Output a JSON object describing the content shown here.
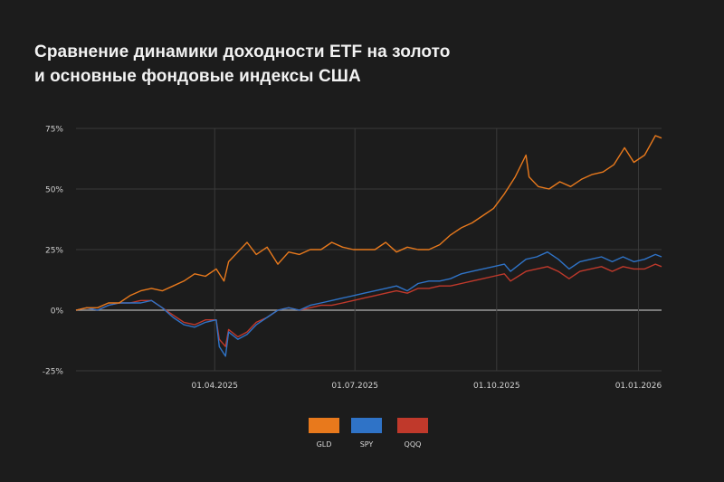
{
  "title": {
    "line1": "Сравнение динамики доходности ETF на золото",
    "line2": "и основные фондовые индексы США"
  },
  "chart_data": {
    "type": "line",
    "x_range": [
      "2025-01-01",
      "2026-01-16"
    ],
    "ylim": [
      -25,
      75
    ],
    "y_ticks": [
      {
        "value": 75,
        "label": "75%"
      },
      {
        "value": 50,
        "label": "50%"
      },
      {
        "value": 25,
        "label": "25%"
      },
      {
        "value": 0,
        "label": "0%"
      },
      {
        "value": -25,
        "label": "-25%"
      }
    ],
    "x_ticks": [
      {
        "date": "2025-04-01",
        "label": "01.04.2025"
      },
      {
        "date": "2025-07-01",
        "label": "01.07.2025"
      },
      {
        "date": "2025-10-01",
        "label": "01.10.2025"
      },
      {
        "date": "2026-01-01",
        "label": "01.01.2026"
      }
    ],
    "grid": true,
    "zero_line": true,
    "legend_position": "bottom",
    "series": [
      {
        "name": "GLD",
        "color": "#e8791c",
        "points": [
          [
            "2025-01-01",
            0
          ],
          [
            "2025-01-08",
            1
          ],
          [
            "2025-01-15",
            1
          ],
          [
            "2025-01-22",
            3
          ],
          [
            "2025-01-29",
            3
          ],
          [
            "2025-02-05",
            6
          ],
          [
            "2025-02-12",
            8
          ],
          [
            "2025-02-19",
            9
          ],
          [
            "2025-02-26",
            8
          ],
          [
            "2025-03-05",
            10
          ],
          [
            "2025-03-12",
            12
          ],
          [
            "2025-03-19",
            15
          ],
          [
            "2025-03-26",
            14
          ],
          [
            "2025-04-02",
            17
          ],
          [
            "2025-04-07",
            12
          ],
          [
            "2025-04-10",
            20
          ],
          [
            "2025-04-16",
            24
          ],
          [
            "2025-04-22",
            28
          ],
          [
            "2025-04-28",
            23
          ],
          [
            "2025-05-05",
            26
          ],
          [
            "2025-05-12",
            19
          ],
          [
            "2025-05-19",
            24
          ],
          [
            "2025-05-26",
            23
          ],
          [
            "2025-06-02",
            25
          ],
          [
            "2025-06-09",
            25
          ],
          [
            "2025-06-16",
            28
          ],
          [
            "2025-06-23",
            26
          ],
          [
            "2025-06-30",
            25
          ],
          [
            "2025-07-07",
            25
          ],
          [
            "2025-07-14",
            25
          ],
          [
            "2025-07-21",
            28
          ],
          [
            "2025-07-28",
            24
          ],
          [
            "2025-08-04",
            26
          ],
          [
            "2025-08-11",
            25
          ],
          [
            "2025-08-18",
            25
          ],
          [
            "2025-08-25",
            27
          ],
          [
            "2025-09-01",
            31
          ],
          [
            "2025-09-08",
            34
          ],
          [
            "2025-09-15",
            36
          ],
          [
            "2025-09-22",
            39
          ],
          [
            "2025-09-29",
            42
          ],
          [
            "2025-10-06",
            48
          ],
          [
            "2025-10-13",
            55
          ],
          [
            "2025-10-20",
            64
          ],
          [
            "2025-10-22",
            55
          ],
          [
            "2025-10-28",
            51
          ],
          [
            "2025-11-04",
            50
          ],
          [
            "2025-11-11",
            53
          ],
          [
            "2025-11-18",
            51
          ],
          [
            "2025-11-25",
            54
          ],
          [
            "2025-12-02",
            56
          ],
          [
            "2025-12-09",
            57
          ],
          [
            "2025-12-16",
            60
          ],
          [
            "2025-12-23",
            67
          ],
          [
            "2025-12-29",
            61
          ],
          [
            "2026-01-05",
            64
          ],
          [
            "2026-01-12",
            72
          ],
          [
            "2026-01-16",
            71
          ]
        ]
      },
      {
        "name": "SPY",
        "color": "#2f73c7",
        "points": [
          [
            "2025-01-01",
            0
          ],
          [
            "2025-01-08",
            1
          ],
          [
            "2025-01-15",
            0
          ],
          [
            "2025-01-22",
            2
          ],
          [
            "2025-01-29",
            3
          ],
          [
            "2025-02-05",
            3
          ],
          [
            "2025-02-12",
            3
          ],
          [
            "2025-02-19",
            4
          ],
          [
            "2025-02-26",
            1
          ],
          [
            "2025-03-05",
            -3
          ],
          [
            "2025-03-12",
            -6
          ],
          [
            "2025-03-19",
            -7
          ],
          [
            "2025-03-26",
            -5
          ],
          [
            "2025-04-02",
            -4
          ],
          [
            "2025-04-04",
            -15
          ],
          [
            "2025-04-08",
            -19
          ],
          [
            "2025-04-10",
            -9
          ],
          [
            "2025-04-16",
            -12
          ],
          [
            "2025-04-22",
            -10
          ],
          [
            "2025-04-28",
            -6
          ],
          [
            "2025-05-05",
            -3
          ],
          [
            "2025-05-12",
            0
          ],
          [
            "2025-05-19",
            1
          ],
          [
            "2025-05-26",
            0
          ],
          [
            "2025-06-02",
            2
          ],
          [
            "2025-06-09",
            3
          ],
          [
            "2025-06-16",
            4
          ],
          [
            "2025-06-23",
            5
          ],
          [
            "2025-06-30",
            6
          ],
          [
            "2025-07-07",
            7
          ],
          [
            "2025-07-14",
            8
          ],
          [
            "2025-07-21",
            9
          ],
          [
            "2025-07-28",
            10
          ],
          [
            "2025-08-04",
            8
          ],
          [
            "2025-08-11",
            11
          ],
          [
            "2025-08-18",
            12
          ],
          [
            "2025-08-25",
            12
          ],
          [
            "2025-09-01",
            13
          ],
          [
            "2025-09-08",
            15
          ],
          [
            "2025-09-15",
            16
          ],
          [
            "2025-09-22",
            17
          ],
          [
            "2025-09-29",
            18
          ],
          [
            "2025-10-06",
            19
          ],
          [
            "2025-10-10",
            16
          ],
          [
            "2025-10-20",
            21
          ],
          [
            "2025-10-27",
            22
          ],
          [
            "2025-11-03",
            24
          ],
          [
            "2025-11-10",
            21
          ],
          [
            "2025-11-17",
            17
          ],
          [
            "2025-11-24",
            20
          ],
          [
            "2025-12-01",
            21
          ],
          [
            "2025-12-08",
            22
          ],
          [
            "2025-12-15",
            20
          ],
          [
            "2025-12-22",
            22
          ],
          [
            "2025-12-29",
            20
          ],
          [
            "2026-01-05",
            21
          ],
          [
            "2026-01-12",
            23
          ],
          [
            "2026-01-16",
            22
          ]
        ]
      },
      {
        "name": "QQQ",
        "color": "#c0392b",
        "points": [
          [
            "2025-01-01",
            0
          ],
          [
            "2025-01-08",
            1
          ],
          [
            "2025-01-15",
            0
          ],
          [
            "2025-01-22",
            2
          ],
          [
            "2025-01-29",
            3
          ],
          [
            "2025-02-05",
            3
          ],
          [
            "2025-02-12",
            4
          ],
          [
            "2025-02-19",
            4
          ],
          [
            "2025-02-26",
            1
          ],
          [
            "2025-03-05",
            -2
          ],
          [
            "2025-03-12",
            -5
          ],
          [
            "2025-03-19",
            -6
          ],
          [
            "2025-03-26",
            -4
          ],
          [
            "2025-04-02",
            -4
          ],
          [
            "2025-04-04",
            -12
          ],
          [
            "2025-04-08",
            -15
          ],
          [
            "2025-04-10",
            -8
          ],
          [
            "2025-04-16",
            -11
          ],
          [
            "2025-04-22",
            -9
          ],
          [
            "2025-04-28",
            -5
          ],
          [
            "2025-05-05",
            -3
          ],
          [
            "2025-05-12",
            0
          ],
          [
            "2025-05-19",
            1
          ],
          [
            "2025-05-26",
            0
          ],
          [
            "2025-06-02",
            1
          ],
          [
            "2025-06-09",
            2
          ],
          [
            "2025-06-16",
            2
          ],
          [
            "2025-06-23",
            3
          ],
          [
            "2025-06-30",
            4
          ],
          [
            "2025-07-07",
            5
          ],
          [
            "2025-07-14",
            6
          ],
          [
            "2025-07-21",
            7
          ],
          [
            "2025-07-28",
            8
          ],
          [
            "2025-08-04",
            7
          ],
          [
            "2025-08-11",
            9
          ],
          [
            "2025-08-18",
            9
          ],
          [
            "2025-08-25",
            10
          ],
          [
            "2025-09-01",
            10
          ],
          [
            "2025-09-08",
            11
          ],
          [
            "2025-09-15",
            12
          ],
          [
            "2025-09-22",
            13
          ],
          [
            "2025-09-29",
            14
          ],
          [
            "2025-10-06",
            15
          ],
          [
            "2025-10-10",
            12
          ],
          [
            "2025-10-20",
            16
          ],
          [
            "2025-10-27",
            17
          ],
          [
            "2025-11-03",
            18
          ],
          [
            "2025-11-10",
            16
          ],
          [
            "2025-11-17",
            13
          ],
          [
            "2025-11-24",
            16
          ],
          [
            "2025-12-01",
            17
          ],
          [
            "2025-12-08",
            18
          ],
          [
            "2025-12-15",
            16
          ],
          [
            "2025-12-22",
            18
          ],
          [
            "2025-12-29",
            17
          ],
          [
            "2026-01-05",
            17
          ],
          [
            "2026-01-12",
            19
          ],
          [
            "2026-01-16",
            18
          ]
        ]
      }
    ]
  }
}
